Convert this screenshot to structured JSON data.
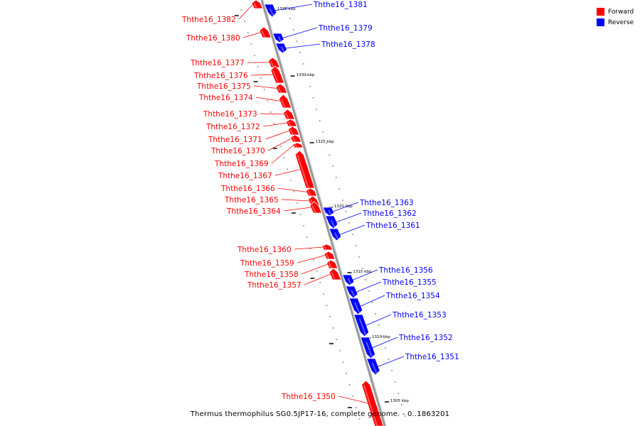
{
  "caption": "Thermus thermophilus SG0.5JP17-16, complete genome. - 0..1863201",
  "legend": {
    "forward": {
      "label": "Forward",
      "color": "#ff0000"
    },
    "reverse": {
      "label": "Reverse",
      "color": "#0000ff"
    }
  },
  "axis": {
    "line_color": "#999999",
    "ticks": [
      {
        "label": "1335 kbp"
      },
      {
        "label": "1330 kbp"
      },
      {
        "label": "1325 kbp"
      },
      {
        "label": "1320 kbp"
      },
      {
        "label": "1315 kbp"
      },
      {
        "label": "1310 kbp"
      },
      {
        "label": "1305 kbp"
      }
    ]
  },
  "genes": [
    {
      "name": "Ththe16_1382",
      "strand": "forward"
    },
    {
      "name": "Ththe16_1381",
      "strand": "reverse"
    },
    {
      "name": "Ththe16_1380",
      "strand": "forward"
    },
    {
      "name": "Ththe16_1379",
      "strand": "reverse"
    },
    {
      "name": "Ththe16_1378",
      "strand": "reverse"
    },
    {
      "name": "Ththe16_1377",
      "strand": "forward"
    },
    {
      "name": "Ththe16_1376",
      "strand": "forward"
    },
    {
      "name": "Ththe16_1375",
      "strand": "forward"
    },
    {
      "name": "Ththe16_1374",
      "strand": "forward"
    },
    {
      "name": "Ththe16_1373",
      "strand": "forward"
    },
    {
      "name": "Ththe16_1372",
      "strand": "forward"
    },
    {
      "name": "Ththe16_1371",
      "strand": "forward"
    },
    {
      "name": "Ththe16_1370",
      "strand": "forward"
    },
    {
      "name": "Ththe16_1369",
      "strand": "forward"
    },
    {
      "name": "Ththe16_1367",
      "strand": "forward"
    },
    {
      "name": "Ththe16_1366",
      "strand": "forward"
    },
    {
      "name": "Ththe16_1365",
      "strand": "forward"
    },
    {
      "name": "Ththe16_1364",
      "strand": "forward"
    },
    {
      "name": "Ththe16_1363",
      "strand": "reverse"
    },
    {
      "name": "Ththe16_1362",
      "strand": "reverse"
    },
    {
      "name": "Ththe16_1361",
      "strand": "reverse"
    },
    {
      "name": "Ththe16_1360",
      "strand": "forward"
    },
    {
      "name": "Ththe16_1359",
      "strand": "forward"
    },
    {
      "name": "Ththe16_1358",
      "strand": "forward"
    },
    {
      "name": "Ththe16_1357",
      "strand": "forward"
    },
    {
      "name": "Ththe16_1356",
      "strand": "reverse"
    },
    {
      "name": "Ththe16_1355",
      "strand": "reverse"
    },
    {
      "name": "Ththe16_1354",
      "strand": "reverse"
    },
    {
      "name": "Ththe16_1353",
      "strand": "reverse"
    },
    {
      "name": "Ththe16_1352",
      "strand": "reverse"
    },
    {
      "name": "Ththe16_1351",
      "strand": "reverse"
    },
    {
      "name": "Ththe16_1350",
      "strand": "forward"
    }
  ]
}
